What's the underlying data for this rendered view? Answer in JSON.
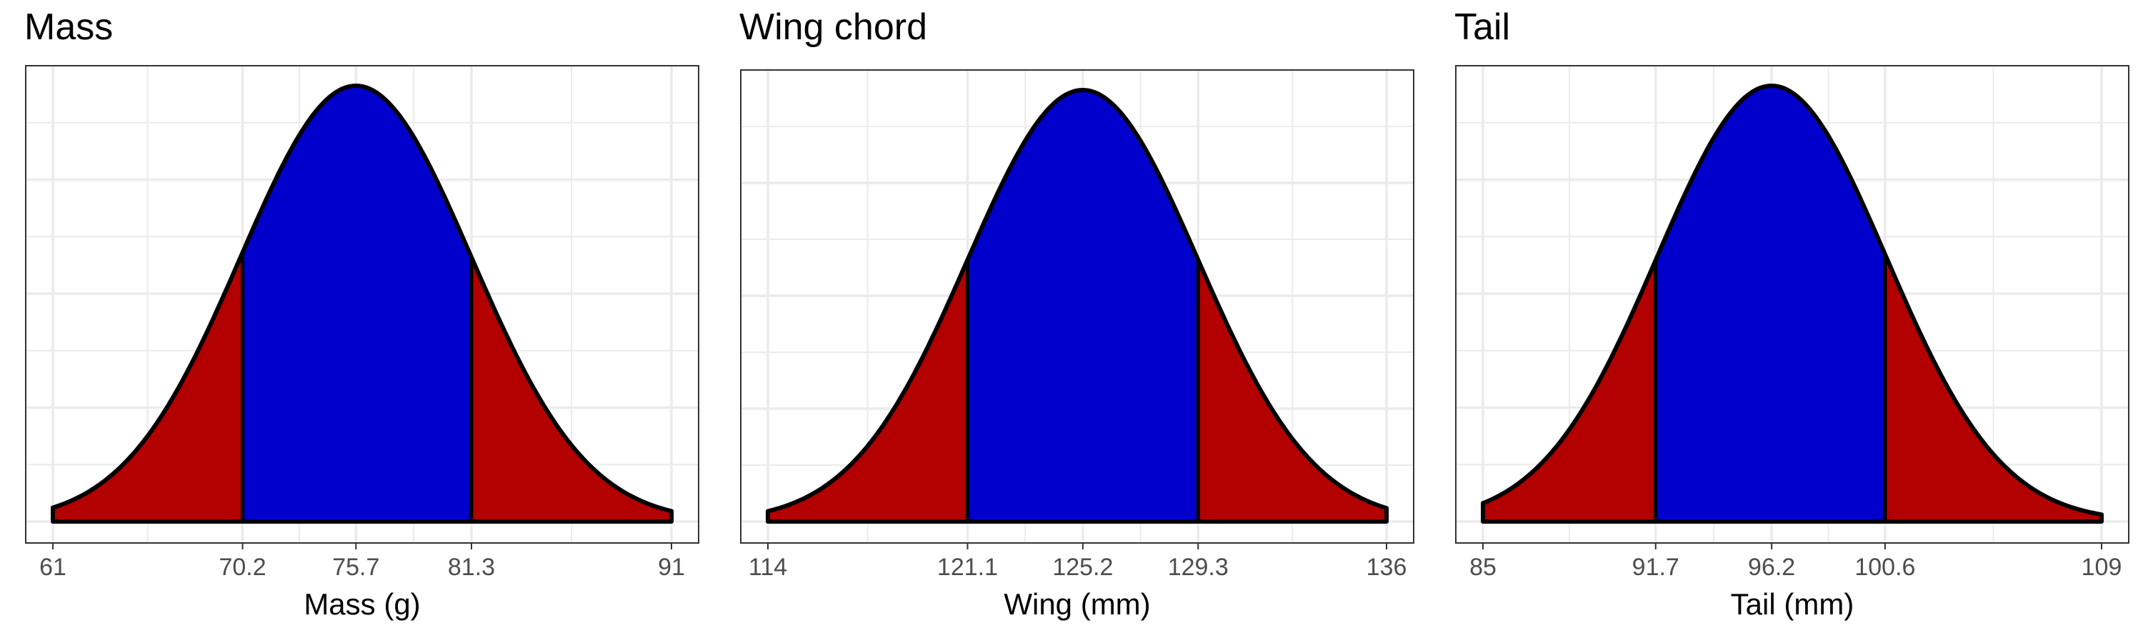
{
  "colors": {
    "tail_fill": "#b30000",
    "center_fill": "#0000cc",
    "outline": "#000000",
    "grid": "#ebebeb",
    "panel_border": "#333333",
    "tick_label": "#4d4d4d"
  },
  "chart_data": [
    {
      "type": "area",
      "title": "Mass",
      "xlabel": "Mass (g)",
      "ylabel": "",
      "mean": 75.7,
      "sd": 5.6,
      "xlim": [
        61,
        91
      ],
      "xticks": [
        61,
        70.2,
        75.7,
        81.3,
        91
      ],
      "xtick_labels": [
        "61",
        "70.2",
        "75.7",
        "81.3",
        "91"
      ],
      "shaded_interval": [
        70.2,
        81.3
      ],
      "grid": true,
      "y_tick_labels": false
    },
    {
      "type": "area",
      "title": "Wing chord",
      "xlabel": "Wing (mm)",
      "ylabel": "",
      "mean": 125.2,
      "sd": 4.1,
      "xlim": [
        114,
        136
      ],
      "xticks": [
        114,
        121.1,
        125.2,
        129.3,
        136
      ],
      "xtick_labels": [
        "114",
        "121.1",
        "125.2",
        "129.3",
        "136"
      ],
      "shaded_interval": [
        121.1,
        129.3
      ],
      "grid": true,
      "y_tick_labels": false
    },
    {
      "type": "area",
      "title": "Tail",
      "xlabel": "Tail (mm)",
      "ylabel": "",
      "mean": 96.2,
      "sd": 4.45,
      "xlim": [
        85,
        109
      ],
      "xticks": [
        85,
        91.7,
        96.2,
        100.6,
        109
      ],
      "xtick_labels": [
        "85",
        "91.7",
        "96.2",
        "100.6",
        "109"
      ],
      "shaded_interval": [
        91.7,
        100.6
      ],
      "grid": true,
      "y_tick_labels": false
    }
  ]
}
